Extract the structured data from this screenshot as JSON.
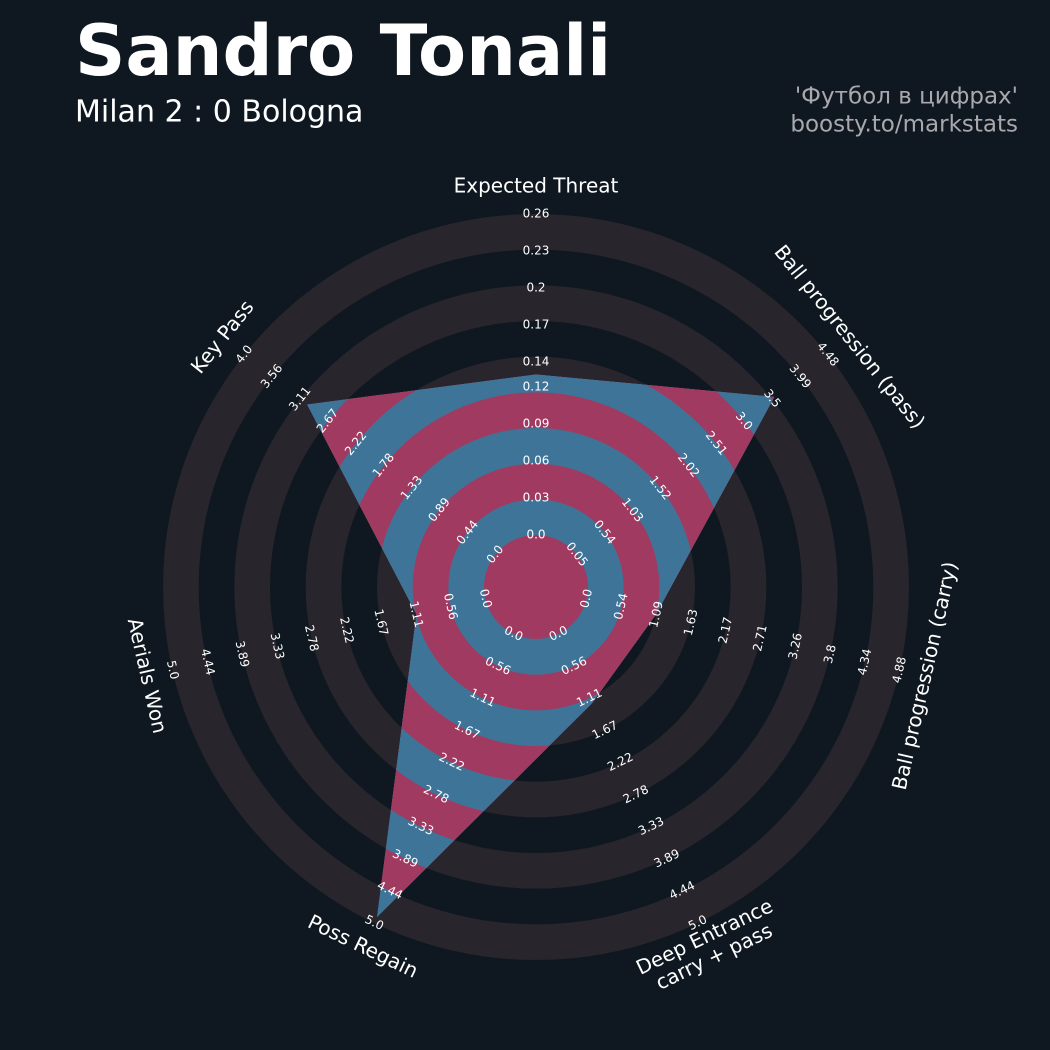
{
  "chart_data": {
    "type": "radar",
    "title": "Sandro Tonali",
    "subtitle": "Milan 2 : 0 Bologna",
    "annotations": [
      "'Футбол в цифрах'",
      "boosty.to/markstats"
    ],
    "background_color": "#0f1820",
    "ring_colors": [
      "#28252c",
      "#0f1820"
    ],
    "series": [
      {
        "colors": [
          "#3f7499",
          "#a13a60"
        ],
        "values": [
          0.13,
          3.54,
          1.08,
          1.2,
          4.9,
          1.1,
          3.0
        ]
      }
    ],
    "axes": [
      {
        "name": "Expected Threat",
        "lim": [
          0,
          0.26
        ],
        "ticks": [
          {
            "value": 0,
            "label": "0.0"
          },
          0.03,
          0.06,
          0.09,
          0.12,
          0.14,
          0.17,
          0.2,
          0.23,
          0.26
        ]
      },
      {
        "name": "Ball progression (pass)",
        "lim": [
          0.05,
          4.48
        ],
        "ticks": [
          0.05,
          0.54,
          1.03,
          1.52,
          2.02,
          2.51,
          {
            "value": 3,
            "label": "3.0"
          },
          3.5,
          3.99,
          4.48
        ]
      },
      {
        "name": "Ball progression (carry)",
        "lim": [
          0,
          4.88
        ],
        "ticks": [
          {
            "value": 0,
            "label": "0.0"
          },
          0.54,
          1.09,
          1.63,
          2.17,
          2.71,
          3.26,
          3.8,
          4.34,
          4.88
        ]
      },
      {
        "name": "Deep Entrance\ncarry + pass",
        "lim": [
          0,
          5
        ],
        "ticks": [
          {
            "value": 0,
            "label": "0.0"
          },
          0.56,
          1.11,
          1.67,
          2.22,
          2.78,
          3.33,
          3.89,
          4.44,
          {
            "value": 5,
            "label": "5.0"
          }
        ]
      },
      {
        "name": "Poss Regain",
        "lim": [
          0,
          5
        ],
        "ticks": [
          {
            "value": 0,
            "label": "0.0"
          },
          0.56,
          1.11,
          1.67,
          2.22,
          2.78,
          3.33,
          3.89,
          4.44,
          {
            "value": 5,
            "label": "5.0"
          }
        ]
      },
      {
        "name": "Aerials Won",
        "lim": [
          0,
          5
        ],
        "ticks": [
          {
            "value": 0,
            "label": "0.0"
          },
          0.56,
          1.11,
          1.67,
          2.22,
          2.78,
          3.33,
          3.89,
          4.44,
          {
            "value": 5,
            "label": "5.0"
          }
        ]
      },
      {
        "name": "Key Pass",
        "lim": [
          0,
          4
        ],
        "ticks": [
          {
            "value": 0,
            "label": "0.0"
          },
          0.44,
          0.89,
          1.33,
          1.78,
          2.22,
          2.67,
          3.11,
          3.56,
          {
            "value": 4,
            "label": "4.0"
          }
        ]
      }
    ]
  }
}
